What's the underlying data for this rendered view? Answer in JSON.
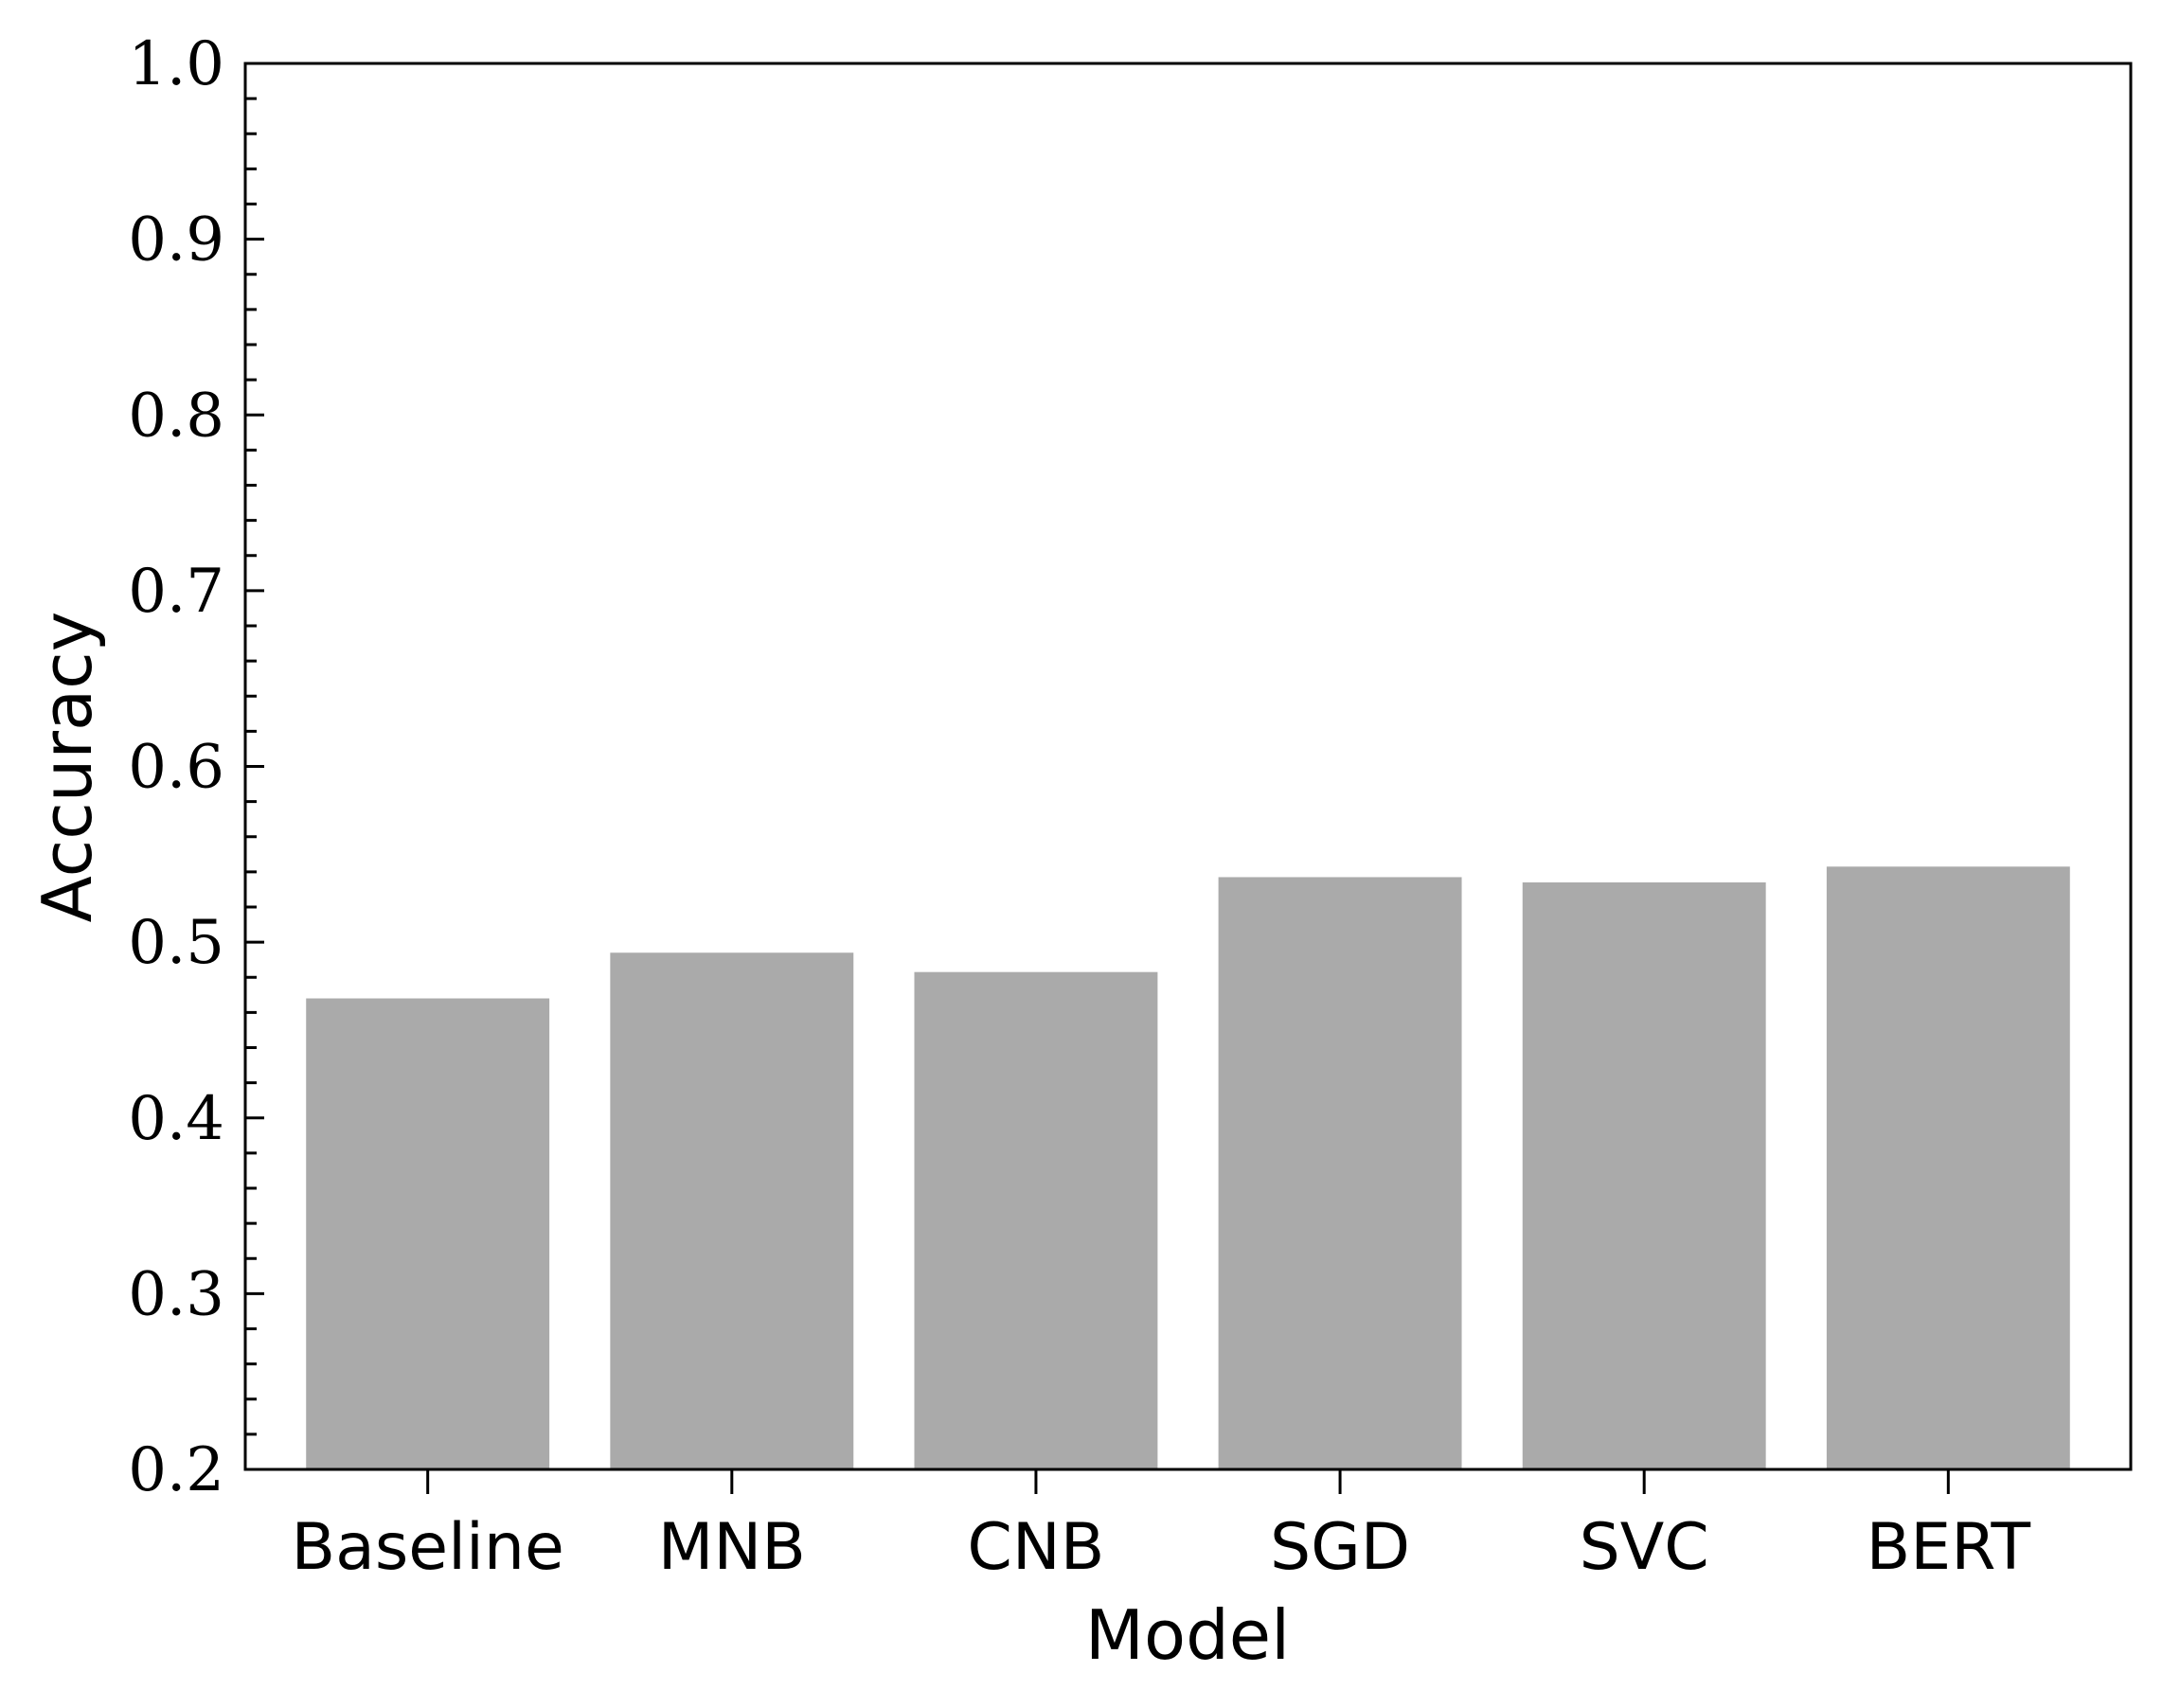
{
  "chart_data": {
    "type": "bar",
    "categories": [
      "Baseline",
      "MNB",
      "CNB",
      "SGD",
      "SVC",
      "BERT"
    ],
    "values": [
      0.468,
      0.494,
      0.483,
      0.537,
      0.534,
      0.543
    ],
    "xlabel": "Model",
    "ylabel": "Accuracy",
    "ylim": [
      0.2,
      1.0
    ],
    "yticks": [
      "0.2",
      "0.3",
      "0.4",
      "0.5",
      "0.6",
      "0.7",
      "0.8",
      "0.9",
      "1.0"
    ],
    "bar_color": "#aaaaaa",
    "grid": false
  }
}
